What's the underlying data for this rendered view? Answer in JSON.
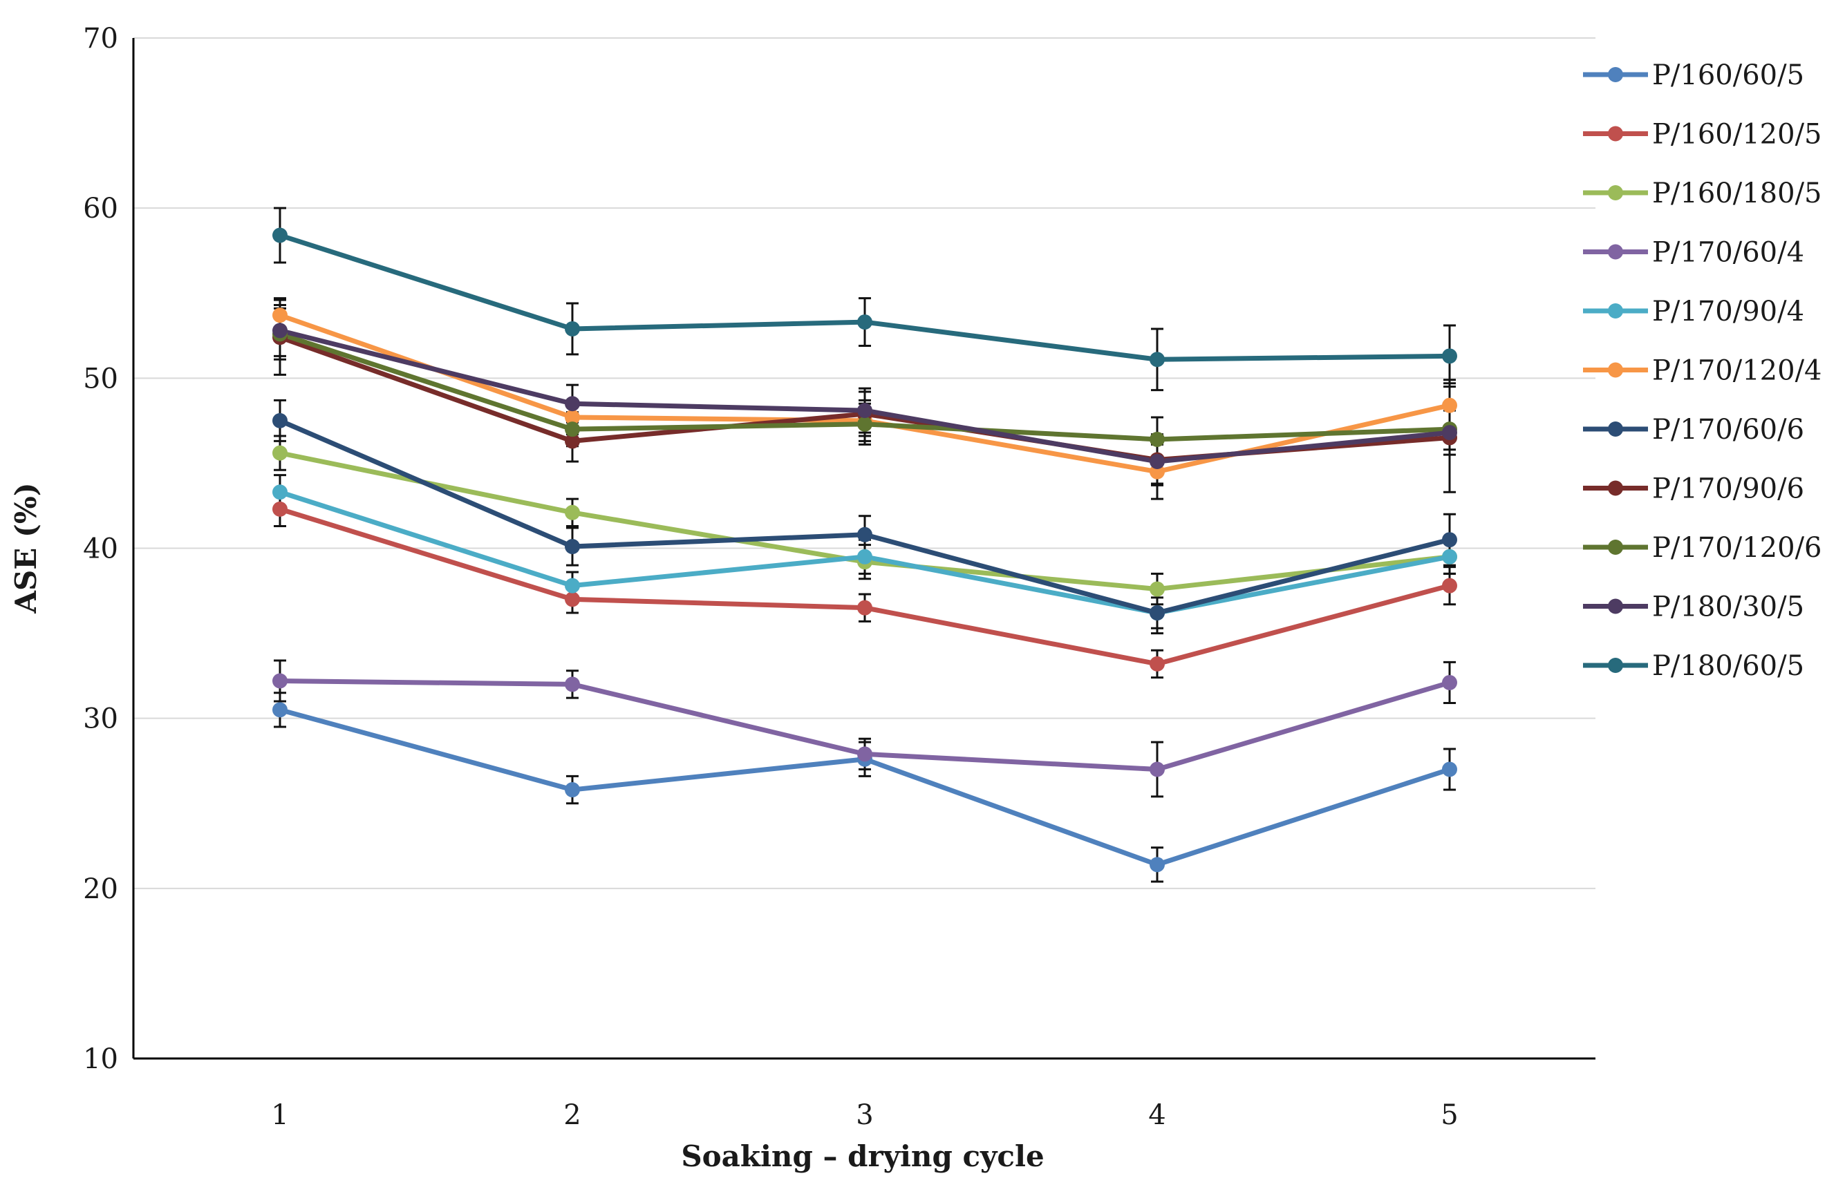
{
  "chart_data": {
    "type": "line",
    "title": "",
    "xlabel": "Soaking – drying cycle",
    "ylabel": "ASE (%)",
    "x": [
      1,
      2,
      3,
      4,
      5
    ],
    "xticks": [
      "1",
      "2",
      "3",
      "4",
      "5"
    ],
    "ylim": [
      10,
      70
    ],
    "yticks": [
      "10",
      "20",
      "30",
      "40",
      "50",
      "60",
      "70"
    ],
    "grid": "horizontal",
    "legend": "right",
    "error_bars": true,
    "series": [
      {
        "name": "P/160/60/5",
        "color": "#4f81bd",
        "values": [
          30.5,
          25.8,
          27.6,
          21.4,
          27.0
        ],
        "errors": [
          1.0,
          0.8,
          1.0,
          1.0,
          1.2
        ]
      },
      {
        "name": "P/160/120/5",
        "color": "#c0504d",
        "values": [
          42.3,
          37.0,
          36.5,
          33.2,
          37.8
        ],
        "errors": [
          1.0,
          0.8,
          0.8,
          0.8,
          1.1
        ]
      },
      {
        "name": "P/160/180/5",
        "color": "#9bbb59",
        "values": [
          45.6,
          42.1,
          39.2,
          37.6,
          39.5
        ],
        "errors": [
          1.0,
          0.8,
          1.0,
          0.9,
          1.0
        ]
      },
      {
        "name": "P/170/60/4",
        "color": "#8064a2",
        "values": [
          32.2,
          32.0,
          27.9,
          27.0,
          32.1
        ],
        "errors": [
          1.2,
          0.8,
          0.9,
          1.6,
          1.2
        ]
      },
      {
        "name": "P/170/90/4",
        "color": "#4bacc6",
        "values": [
          43.3,
          37.8,
          39.5,
          36.2,
          39.5
        ],
        "errors": [
          1.0,
          0.8,
          1.0,
          0.9,
          1.0
        ]
      },
      {
        "name": "P/170/120/4",
        "color": "#f79646",
        "values": [
          53.7,
          47.7,
          47.5,
          44.5,
          48.4
        ],
        "errors": [
          1.0,
          1.0,
          1.2,
          1.6,
          1.5
        ]
      },
      {
        "name": "P/170/60/6",
        "color": "#2c4d75",
        "values": [
          47.5,
          40.1,
          40.8,
          36.2,
          40.5
        ],
        "errors": [
          1.2,
          1.1,
          1.1,
          1.2,
          1.5
        ]
      },
      {
        "name": "P/170/90/6",
        "color": "#772c2a",
        "values": [
          52.4,
          46.3,
          47.9,
          45.2,
          46.5
        ],
        "errors": [
          2.2,
          1.2,
          1.3,
          1.5,
          3.2
        ]
      },
      {
        "name": "P/170/120/6",
        "color": "#5f7530",
        "values": [
          52.6,
          47.0,
          47.3,
          46.4,
          47.0
        ],
        "errors": [
          1.5,
          1.0,
          1.2,
          1.3,
          1.2
        ]
      },
      {
        "name": "P/180/30/5",
        "color": "#4d3b62",
        "values": [
          52.8,
          48.5,
          48.1,
          45.1,
          46.8
        ],
        "errors": [
          1.5,
          1.1,
          1.3,
          1.3,
          1.3
        ]
      },
      {
        "name": "P/180/60/5",
        "color": "#276a7c",
        "values": [
          58.4,
          52.9,
          53.3,
          51.1,
          51.3
        ],
        "errors": [
          1.6,
          1.5,
          1.4,
          1.8,
          1.8
        ]
      }
    ]
  }
}
